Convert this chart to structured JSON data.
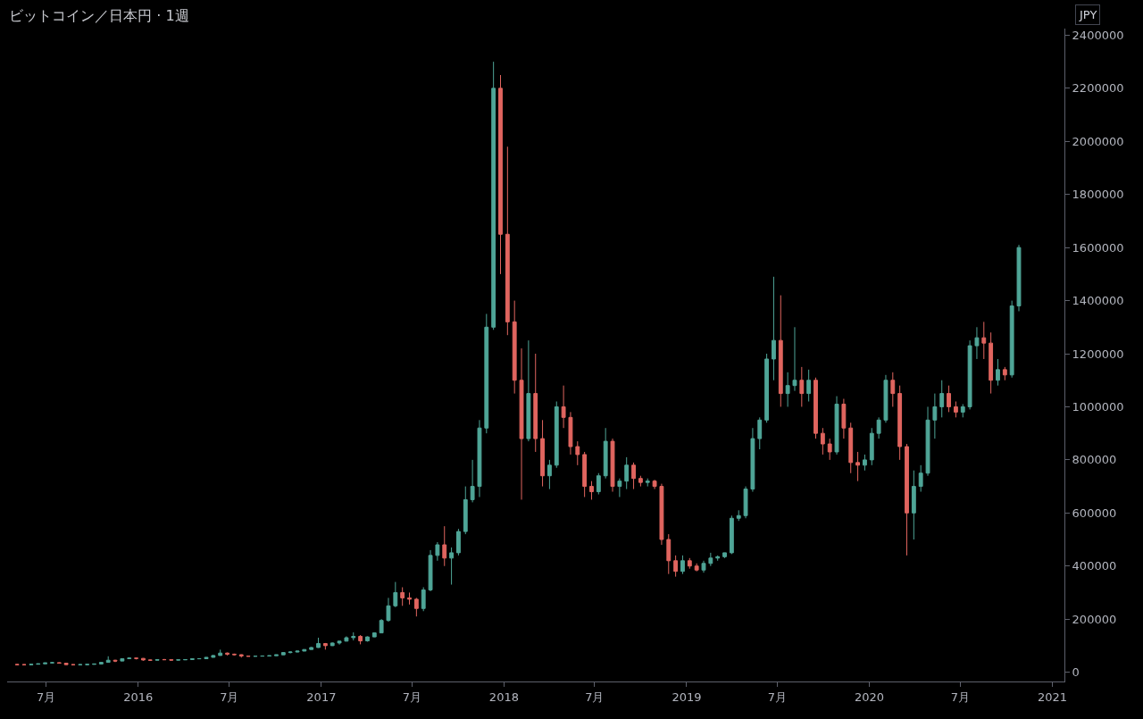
{
  "chart_data": {
    "type": "candlestick",
    "title": "ビットコイン／日本円 · 1週",
    "annotations": [
      "JPY"
    ],
    "colors": [
      "#e0655f",
      "#e0655f",
      "#4fa597",
      "#4fa597",
      "#4fa597",
      "#4fa597",
      "#e0655f",
      "#e0655f",
      "#e0655f",
      "#4fa597",
      "#4fa597",
      "#4fa597",
      "#4fa597",
      "#4fa597",
      "#e0655f",
      "#4fa597",
      "#4fa597",
      "#e0655f",
      "#e0655f",
      "#e0655f",
      "#4fa597",
      "#e0655f",
      "#e0655f",
      "#4fa597",
      "#4fa597",
      "#4fa597",
      "#4fa597",
      "#4fa597",
      "#4fa597",
      "#4fa597",
      "#e0655f",
      "#e0655f",
      "#e0655f",
      "#e0655f",
      "#4fa597",
      "#4fa597",
      "#4fa597",
      "#4fa597",
      "#4fa597",
      "#4fa597",
      "#4fa597",
      "#4fa597",
      "#4fa597",
      "#4fa597",
      "#e0655f",
      "#4fa597",
      "#4fa597",
      "#4fa597",
      "#4fa597",
      "#e0655f",
      "#4fa597",
      "#4fa597",
      "#4fa597",
      "#4fa597",
      "#4fa597",
      "#e0655f",
      "#e0655f",
      "#e0655f",
      "#4fa597",
      "#4fa597",
      "#4fa597",
      "#e0655f",
      "#4fa597",
      "#4fa597",
      "#4fa597",
      "#4fa597",
      "#4fa597",
      "#4fa597",
      "#4fa597",
      "#e0655f",
      "#e0655f",
      "#e0655f",
      "#e0655f",
      "#4fa597",
      "#e0655f",
      "#e0655f",
      "#4fa597",
      "#4fa597",
      "#e0655f",
      "#e0655f",
      "#e0655f",
      "#e0655f",
      "#e0655f",
      "#4fa597",
      "#4fa597",
      "#e0655f",
      "#4fa597",
      "#4fa597",
      "#e0655f",
      "#e0655f",
      "#4fa597",
      "#e0655f",
      "#e0655f",
      "#e0655f",
      "#e0655f",
      "#4fa597",
      "#e0655f",
      "#e0655f",
      "#4fa597",
      "#4fa597",
      "#4fa597",
      "#4fa597",
      "#4fa597",
      "#4fa597",
      "#4fa597",
      "#4fa597",
      "#4fa597",
      "#4fa597",
      "#4fa597",
      "#e0655f",
      "#4fa597",
      "#4fa597",
      "#e0655f",
      "#4fa597",
      "#e0655f",
      "#e0655f",
      "#e0655f",
      "#4fa597",
      "#e0655f",
      "#e0655f",
      "#e0655f",
      "#4fa597",
      "#4fa597",
      "#4fa597",
      "#4fa597",
      "#e0655f",
      "#e0655f",
      "#e0655f",
      "#4fa597",
      "#4fa597",
      "#4fa597",
      "#4fa597",
      "#4fa597",
      "#e0655f",
      "#e0655f",
      "#4fa597",
      "#4fa597",
      "#4fa597",
      "#e0655f",
      "#e0655f",
      "#4fa597",
      "#e0655f",
      "#4fa597",
      "#4fa597"
    ],
    "xlim": [
      "2015-04-14",
      "2021-01-25"
    ],
    "xticks": [
      {
        "value": "2015-07-01",
        "label": "7月"
      },
      {
        "value": "2016-01-01",
        "label": "2016"
      },
      {
        "value": "2016-07-01",
        "label": "7月"
      },
      {
        "value": "2017-01-01",
        "label": "2017"
      },
      {
        "value": "2017-07-01",
        "label": "7月"
      },
      {
        "value": "2018-01-01",
        "label": "2018"
      },
      {
        "value": "2018-07-01",
        "label": "7月"
      },
      {
        "value": "2019-01-01",
        "label": "2019"
      },
      {
        "value": "2019-07-01",
        "label": "7月"
      },
      {
        "value": "2020-01-01",
        "label": "2020"
      },
      {
        "value": "2020-07-01",
        "label": "7月"
      },
      {
        "value": "2021-01-01",
        "label": "2021"
      }
    ],
    "ylim": [
      -35000,
      2425000
    ],
    "yticks": [
      0,
      200000,
      400000,
      600000,
      800000,
      1000000,
      1200000,
      1400000,
      1600000,
      1800000,
      2000000,
      2200000,
      2400000
    ],
    "grid": false,
    "x": [
      "2015-05-04",
      "2015-05-18",
      "2015-06-01",
      "2015-06-15",
      "2015-06-29",
      "2015-07-13",
      "2015-07-27",
      "2015-08-10",
      "2015-08-24",
      "2015-09-07",
      "2015-09-21",
      "2015-10-05",
      "2015-10-19",
      "2015-11-02",
      "2015-11-16",
      "2015-11-30",
      "2015-12-14",
      "2015-12-28",
      "2016-01-11",
      "2016-01-25",
      "2016-02-08",
      "2016-02-22",
      "2016-03-07",
      "2016-03-21",
      "2016-04-04",
      "2016-04-18",
      "2016-05-02",
      "2016-05-16",
      "2016-05-30",
      "2016-06-13",
      "2016-06-27",
      "2016-07-11",
      "2016-07-25",
      "2016-08-08",
      "2016-08-22",
      "2016-09-05",
      "2016-09-19",
      "2016-10-03",
      "2016-10-17",
      "2016-10-31",
      "2016-11-14",
      "2016-11-28",
      "2016-12-12",
      "2016-12-26",
      "2017-01-09",
      "2017-01-23",
      "2017-02-06",
      "2017-02-20",
      "2017-03-06",
      "2017-03-20",
      "2017-04-03",
      "2017-04-17",
      "2017-05-01",
      "2017-05-15",
      "2017-05-29",
      "2017-06-12",
      "2017-06-26",
      "2017-07-10",
      "2017-07-24",
      "2017-08-07",
      "2017-08-21",
      "2017-09-04",
      "2017-09-18",
      "2017-10-02",
      "2017-10-16",
      "2017-10-30",
      "2017-11-13",
      "2017-11-27",
      "2017-12-11",
      "2017-12-25",
      "2018-01-08",
      "2018-01-22",
      "2018-02-05",
      "2018-02-19",
      "2018-03-05",
      "2018-03-19",
      "2018-04-02",
      "2018-04-16",
      "2018-04-30",
      "2018-05-14",
      "2018-05-28",
      "2018-06-11",
      "2018-06-25",
      "2018-07-09",
      "2018-07-23",
      "2018-08-06",
      "2018-08-20",
      "2018-09-03",
      "2018-09-17",
      "2018-10-01",
      "2018-10-15",
      "2018-10-29",
      "2018-11-12",
      "2018-11-26",
      "2018-12-10",
      "2018-12-24",
      "2019-01-07",
      "2019-01-21",
      "2019-02-04",
      "2019-02-18",
      "2019-03-04",
      "2019-03-18",
      "2019-04-01",
      "2019-04-15",
      "2019-04-29",
      "2019-05-13",
      "2019-05-27",
      "2019-06-10",
      "2019-06-24",
      "2019-07-08",
      "2019-07-22",
      "2019-08-05",
      "2019-08-19",
      "2019-09-02",
      "2019-09-16",
      "2019-09-30",
      "2019-10-14",
      "2019-10-28",
      "2019-11-11",
      "2019-11-25",
      "2019-12-09",
      "2019-12-23",
      "2020-01-06",
      "2020-01-20",
      "2020-02-03",
      "2020-02-17",
      "2020-03-02",
      "2020-03-16",
      "2020-03-30",
      "2020-04-13",
      "2020-04-27",
      "2020-05-11",
      "2020-05-25",
      "2020-06-08",
      "2020-06-22",
      "2020-07-06",
      "2020-07-20",
      "2020-08-03",
      "2020-08-17",
      "2020-08-31",
      "2020-09-14",
      "2020-09-28",
      "2020-10-12",
      "2020-10-26"
    ],
    "ohlc": [
      [
        29000,
        30500,
        27500,
        28500
      ],
      [
        28500,
        30000,
        27500,
        28000
      ],
      [
        28000,
        31000,
        27500,
        30000
      ],
      [
        30000,
        32000,
        29500,
        31500
      ],
      [
        31500,
        36000,
        31000,
        35000
      ],
      [
        35000,
        38000,
        34000,
        36000
      ],
      [
        36000,
        37000,
        33000,
        34000
      ],
      [
        34000,
        34500,
        27000,
        28500
      ],
      [
        28500,
        29500,
        26500,
        28000
      ],
      [
        28000,
        29500,
        27500,
        28500
      ],
      [
        28500,
        30000,
        28000,
        29500
      ],
      [
        29500,
        31500,
        29000,
        31000
      ],
      [
        31000,
        38000,
        30500,
        37000
      ],
      [
        37000,
        60000,
        36000,
        45000
      ],
      [
        45000,
        47000,
        38000,
        42000
      ],
      [
        42000,
        52000,
        41500,
        51000
      ],
      [
        51000,
        56000,
        50000,
        53000
      ],
      [
        53000,
        55000,
        48000,
        52000
      ],
      [
        52000,
        53000,
        43000,
        46000
      ],
      [
        46000,
        47500,
        43500,
        45000
      ],
      [
        45000,
        49000,
        44500,
        47500
      ],
      [
        47500,
        50000,
        46000,
        47000
      ],
      [
        47000,
        47500,
        44500,
        45500
      ],
      [
        45500,
        47000,
        45000,
        46500
      ],
      [
        46500,
        48000,
        46000,
        47500
      ],
      [
        47500,
        52000,
        47000,
        50500
      ],
      [
        50500,
        51500,
        49500,
        50800
      ],
      [
        50800,
        57000,
        49500,
        56000
      ],
      [
        56000,
        65000,
        55500,
        63000
      ],
      [
        63000,
        85000,
        62000,
        72000
      ],
      [
        72000,
        74000,
        63000,
        68000
      ],
      [
        68000,
        70000,
        64000,
        66000
      ],
      [
        66000,
        67000,
        55000,
        61000
      ],
      [
        61000,
        62500,
        59000,
        60000
      ],
      [
        60000,
        61500,
        59000,
        60500
      ],
      [
        60500,
        63000,
        60000,
        61000
      ],
      [
        61000,
        62500,
        60500,
        62000
      ],
      [
        62000,
        66000,
        61500,
        65500
      ],
      [
        65500,
        75000,
        65000,
        74000
      ],
      [
        74000,
        78000,
        71000,
        76000
      ],
      [
        76000,
        80000,
        75000,
        79500
      ],
      [
        79500,
        86000,
        79000,
        85500
      ],
      [
        85500,
        95000,
        85000,
        93000
      ],
      [
        93000,
        130000,
        92000,
        108000
      ],
      [
        108000,
        110000,
        85000,
        100000
      ],
      [
        100000,
        112000,
        99000,
        110000
      ],
      [
        110000,
        118000,
        104000,
        117000
      ],
      [
        117000,
        135000,
        116000,
        130000
      ],
      [
        130000,
        150000,
        120000,
        135000
      ],
      [
        135000,
        140000,
        105000,
        118000
      ],
      [
        118000,
        135000,
        115000,
        133000
      ],
      [
        133000,
        150000,
        132000,
        148000
      ],
      [
        148000,
        200000,
        147000,
        195000
      ],
      [
        195000,
        280000,
        190000,
        250000
      ],
      [
        250000,
        340000,
        245000,
        300000
      ],
      [
        300000,
        320000,
        250000,
        280000
      ],
      [
        280000,
        300000,
        255000,
        275000
      ],
      [
        275000,
        280000,
        210000,
        240000
      ],
      [
        240000,
        320000,
        230000,
        310000
      ],
      [
        310000,
        460000,
        305000,
        440000
      ],
      [
        440000,
        490000,
        420000,
        480000
      ],
      [
        480000,
        550000,
        400000,
        430000
      ],
      [
        430000,
        470000,
        330000,
        450000
      ],
      [
        450000,
        540000,
        440000,
        530000
      ],
      [
        530000,
        700000,
        520000,
        650000
      ],
      [
        650000,
        800000,
        640000,
        700000
      ],
      [
        700000,
        950000,
        660000,
        920000
      ],
      [
        920000,
        1350000,
        900000,
        1300000
      ],
      [
        1300000,
        2300000,
        1290000,
        2200000
      ],
      [
        2200000,
        2250000,
        1500000,
        1650000
      ],
      [
        1650000,
        1980000,
        1270000,
        1320000
      ],
      [
        1320000,
        1400000,
        1050000,
        1100000
      ],
      [
        1100000,
        1220000,
        650000,
        880000
      ],
      [
        880000,
        1250000,
        870000,
        1050000
      ],
      [
        1050000,
        1200000,
        830000,
        880000
      ],
      [
        880000,
        950000,
        700000,
        740000
      ],
      [
        740000,
        800000,
        690000,
        780000
      ],
      [
        780000,
        1020000,
        770000,
        1000000
      ],
      [
        1000000,
        1080000,
        920000,
        960000
      ],
      [
        960000,
        980000,
        820000,
        850000
      ],
      [
        850000,
        870000,
        780000,
        820000
      ],
      [
        820000,
        830000,
        660000,
        700000
      ],
      [
        700000,
        720000,
        650000,
        680000
      ],
      [
        680000,
        750000,
        670000,
        740000
      ],
      [
        740000,
        920000,
        730000,
        870000
      ],
      [
        870000,
        880000,
        680000,
        700000
      ],
      [
        700000,
        730000,
        660000,
        720000
      ],
      [
        720000,
        810000,
        690000,
        780000
      ],
      [
        780000,
        790000,
        690000,
        730000
      ],
      [
        730000,
        740000,
        700000,
        715000
      ],
      [
        715000,
        730000,
        700000,
        720000
      ],
      [
        720000,
        725000,
        690000,
        700000
      ],
      [
        700000,
        710000,
        480000,
        500000
      ],
      [
        500000,
        520000,
        370000,
        420000
      ],
      [
        420000,
        440000,
        360000,
        380000
      ],
      [
        380000,
        440000,
        370000,
        420000
      ],
      [
        420000,
        430000,
        390000,
        400000
      ],
      [
        400000,
        410000,
        380000,
        385000
      ],
      [
        385000,
        420000,
        375000,
        410000
      ],
      [
        410000,
        450000,
        400000,
        430000
      ],
      [
        430000,
        440000,
        420000,
        435000
      ],
      [
        435000,
        450000,
        430000,
        450000
      ],
      [
        450000,
        590000,
        445000,
        580000
      ],
      [
        580000,
        610000,
        570000,
        590000
      ],
      [
        590000,
        700000,
        580000,
        690000
      ],
      [
        690000,
        920000,
        680000,
        880000
      ],
      [
        880000,
        960000,
        840000,
        950000
      ],
      [
        950000,
        1200000,
        940000,
        1180000
      ],
      [
        1180000,
        1490000,
        1100000,
        1250000
      ],
      [
        1250000,
        1420000,
        1000000,
        1050000
      ],
      [
        1050000,
        1130000,
        1000000,
        1080000
      ],
      [
        1080000,
        1300000,
        1060000,
        1100000
      ],
      [
        1100000,
        1150000,
        1000000,
        1050000
      ],
      [
        1050000,
        1140000,
        1020000,
        1100000
      ],
      [
        1100000,
        1110000,
        880000,
        900000
      ],
      [
        900000,
        920000,
        820000,
        860000
      ],
      [
        860000,
        880000,
        800000,
        830000
      ],
      [
        830000,
        1040000,
        820000,
        1010000
      ],
      [
        1010000,
        1030000,
        880000,
        920000
      ],
      [
        920000,
        940000,
        750000,
        790000
      ],
      [
        790000,
        830000,
        720000,
        780000
      ],
      [
        780000,
        820000,
        760000,
        800000
      ],
      [
        800000,
        920000,
        780000,
        900000
      ],
      [
        900000,
        960000,
        880000,
        950000
      ],
      [
        950000,
        1120000,
        940000,
        1100000
      ],
      [
        1100000,
        1130000,
        1000000,
        1050000
      ],
      [
        1050000,
        1080000,
        800000,
        850000
      ],
      [
        850000,
        860000,
        440000,
        600000
      ],
      [
        600000,
        760000,
        500000,
        700000
      ],
      [
        700000,
        780000,
        680000,
        750000
      ],
      [
        750000,
        1000000,
        740000,
        950000
      ],
      [
        950000,
        1050000,
        880000,
        1000000
      ],
      [
        1000000,
        1100000,
        960000,
        1050000
      ],
      [
        1050000,
        1080000,
        980000,
        1000000
      ],
      [
        1000000,
        1020000,
        960000,
        980000
      ],
      [
        980000,
        1010000,
        960000,
        1000000
      ],
      [
        1000000,
        1250000,
        990000,
        1230000
      ],
      [
        1230000,
        1300000,
        1180000,
        1260000
      ],
      [
        1260000,
        1320000,
        1180000,
        1240000
      ],
      [
        1240000,
        1280000,
        1050000,
        1100000
      ],
      [
        1100000,
        1180000,
        1080000,
        1140000
      ],
      [
        1140000,
        1150000,
        1100000,
        1120000
      ],
      [
        1120000,
        1400000,
        1110000,
        1380000
      ],
      [
        1380000,
        1610000,
        1360000,
        1600000
      ]
    ]
  }
}
